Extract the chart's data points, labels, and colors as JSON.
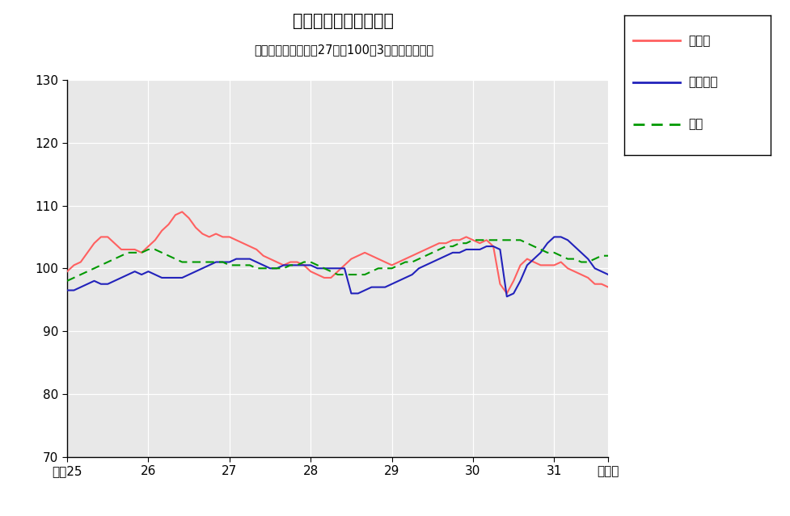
{
  "title": "鉱工業生産指数の推移",
  "subtitle": "（季節調整済、平成27年＝100、3ヶ月移動平均）",
  "ylim": [
    70,
    130
  ],
  "yticks": [
    70,
    80,
    90,
    100,
    110,
    120,
    130
  ],
  "background_color": "#e8e8e8",
  "outer_background": "#ffffff",
  "legend_labels": [
    "鳥取県",
    "中国地方",
    "全国"
  ],
  "legend_colors": [
    "#ff6060",
    "#2222bb",
    "#009900"
  ],
  "x_tick_labels": [
    "平成25",
    "26",
    "27",
    "28",
    "29",
    "30",
    "31",
    "令和元"
  ],
  "x_tick_positions": [
    0,
    12,
    24,
    36,
    48,
    60,
    72,
    80
  ],
  "tottori": [
    99.5,
    100.5,
    101.0,
    102.5,
    104.0,
    105.0,
    105.0,
    104.0,
    103.0,
    103.0,
    103.0,
    102.5,
    103.5,
    104.5,
    106.0,
    107.0,
    108.5,
    109.0,
    108.0,
    106.5,
    105.5,
    105.0,
    105.5,
    105.0,
    105.0,
    104.5,
    104.0,
    103.5,
    103.0,
    102.0,
    101.5,
    101.0,
    100.5,
    101.0,
    101.0,
    100.5,
    99.5,
    99.0,
    98.5,
    98.5,
    99.5,
    100.5,
    101.5,
    102.0,
    102.5,
    102.0,
    101.5,
    101.0,
    100.5,
    101.0,
    101.5,
    102.0,
    102.5,
    103.0,
    103.5,
    104.0,
    104.0,
    104.5,
    104.5,
    105.0,
    104.5,
    104.0,
    104.5,
    103.5,
    97.5,
    96.0,
    98.0,
    100.5,
    101.5,
    101.0,
    100.5,
    100.5,
    100.5,
    101.0,
    100.0,
    99.5,
    99.0,
    98.5,
    97.5,
    97.5,
    97.0
  ],
  "chugoku": [
    96.5,
    96.5,
    97.0,
    97.5,
    98.0,
    97.5,
    97.5,
    98.0,
    98.5,
    99.0,
    99.5,
    99.0,
    99.5,
    99.0,
    98.5,
    98.5,
    98.5,
    98.5,
    99.0,
    99.5,
    100.0,
    100.5,
    101.0,
    101.0,
    101.0,
    101.5,
    101.5,
    101.5,
    101.0,
    100.5,
    100.0,
    100.0,
    100.5,
    100.5,
    100.5,
    100.5,
    100.5,
    100.0,
    100.0,
    100.0,
    100.0,
    100.0,
    96.0,
    96.0,
    96.5,
    97.0,
    97.0,
    97.0,
    97.5,
    98.0,
    98.5,
    99.0,
    100.0,
    100.5,
    101.0,
    101.5,
    102.0,
    102.5,
    102.5,
    103.0,
    103.0,
    103.0,
    103.5,
    103.5,
    103.0,
    95.5,
    96.0,
    98.0,
    100.5,
    101.5,
    102.5,
    104.0,
    105.0,
    105.0,
    104.5,
    103.5,
    102.5,
    101.5,
    100.0,
    99.5,
    99.0
  ],
  "national": [
    98.0,
    98.5,
    99.0,
    99.5,
    100.0,
    100.5,
    101.0,
    101.5,
    102.0,
    102.5,
    102.5,
    102.5,
    103.0,
    103.0,
    102.5,
    102.0,
    101.5,
    101.0,
    101.0,
    101.0,
    101.0,
    101.0,
    101.0,
    101.0,
    100.5,
    100.5,
    100.5,
    100.5,
    100.0,
    100.0,
    100.0,
    100.0,
    100.0,
    100.5,
    100.5,
    101.0,
    101.0,
    100.5,
    100.0,
    99.5,
    99.0,
    99.0,
    99.0,
    99.0,
    99.0,
    99.5,
    100.0,
    100.0,
    100.0,
    100.5,
    101.0,
    101.0,
    101.5,
    102.0,
    102.5,
    103.0,
    103.5,
    103.5,
    104.0,
    104.0,
    104.5,
    104.5,
    104.5,
    104.5,
    104.5,
    104.5,
    104.5,
    104.5,
    104.0,
    103.5,
    103.0,
    102.5,
    102.5,
    102.0,
    101.5,
    101.5,
    101.0,
    101.0,
    101.5,
    102.0,
    102.0
  ]
}
